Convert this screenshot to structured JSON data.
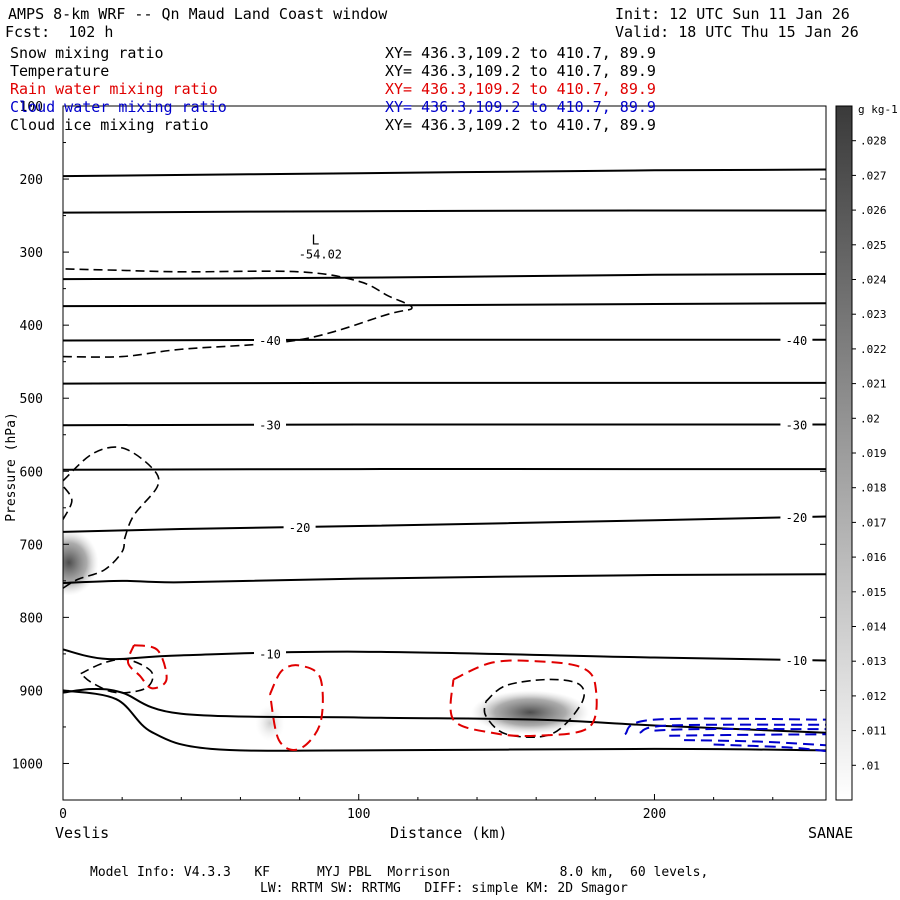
{
  "header": {
    "title": "AMPS 8-km WRF -- Qn Maud Land Coast window",
    "init": "Init: 12 UTC Sun 11 Jan 26",
    "forecast": "Fcst:  102 h",
    "valid": "Valid: 18 UTC Thu 15 Jan 26"
  },
  "fields": [
    {
      "name": "Snow mixing ratio",
      "xy": "XY= 436.3,109.2 to 410.7, 89.9",
      "color": "#000000"
    },
    {
      "name": "Temperature",
      "xy": "XY= 436.3,109.2 to 410.7, 89.9",
      "color": "#000000"
    },
    {
      "name": "Rain water mixing ratio",
      "xy": "XY= 436.3,109.2 to 410.7, 89.9",
      "color": "#e00000"
    },
    {
      "name": "Cloud water mixing ratio",
      "xy": "XY= 436.3,109.2 to 410.7, 89.9",
      "color": "#0000cc"
    },
    {
      "name": "Cloud ice mixing ratio",
      "xy": "XY= 436.3,109.2 to 410.7, 89.9",
      "color": "#000000"
    }
  ],
  "axes": {
    "ylabel": "Pressure (hPa)",
    "xlabel": "Distance (km)",
    "left_station": "Veslis",
    "right_station": "SANAE"
  },
  "footer": {
    "line1": "Model Info: V4.3.3   KF      MYJ PBL  Morrison              8.0 km,  60 levels,",
    "line2": "LW: RRTM SW: RRTMG   DIFF: simple KM: 2D Smagor"
  },
  "chart_data": {
    "type": "cross-section",
    "title": "AMPS 8-km WRF -- Qn Maud Land Coast window",
    "xlabel": "Distance (km)",
    "ylabel": "Pressure (hPa)",
    "xlim": [
      0,
      258
    ],
    "ylim": [
      1050,
      100
    ],
    "y_reversed": true,
    "xticks": [
      0,
      100,
      200
    ],
    "yticks": [
      100,
      200,
      300,
      400,
      500,
      600,
      700,
      800,
      900,
      1000
    ],
    "colorbar": {
      "label": "g kg-1",
      "ticks": [
        ".01",
        ".011",
        ".012",
        ".013",
        ".014",
        ".015",
        ".016",
        ".017",
        ".018",
        ".019",
        ".02",
        ".021",
        ".022",
        ".023",
        ".024",
        ".025",
        ".026",
        ".027",
        ".028"
      ]
    },
    "low_marker": {
      "label": "L",
      "value": "-54.02",
      "x": 85,
      "p": 320
    },
    "temperature_isotherms": [
      {
        "points": [
          [
            0,
            196
          ],
          [
            100,
            192
          ],
          [
            200,
            188
          ],
          [
            258,
            187
          ]
        ]
      },
      {
        "points": [
          [
            0,
            246
          ],
          [
            100,
            244
          ],
          [
            200,
            243
          ],
          [
            258,
            243
          ]
        ]
      },
      {
        "points": [
          [
            0,
            337
          ],
          [
            100,
            335
          ],
          [
            200,
            331
          ],
          [
            258,
            330
          ]
        ]
      },
      {
        "points": [
          [
            0,
            374
          ],
          [
            100,
            373
          ],
          [
            200,
            371
          ],
          [
            258,
            370
          ]
        ]
      },
      {
        "points": [
          [
            0,
            421
          ],
          [
            100,
            420
          ],
          [
            200,
            420
          ],
          [
            258,
            420
          ]
        ],
        "label": "-40",
        "label_x": [
          70,
          248
        ]
      },
      {
        "points": [
          [
            0,
            480
          ],
          [
            100,
            479
          ],
          [
            200,
            479
          ],
          [
            258,
            479
          ]
        ]
      },
      {
        "points": [
          [
            0,
            537
          ],
          [
            100,
            536
          ],
          [
            200,
            536
          ],
          [
            258,
            536
          ]
        ],
        "label": "-30",
        "label_x": [
          70,
          248
        ]
      },
      {
        "points": [
          [
            0,
            598
          ],
          [
            100,
            597
          ],
          [
            200,
            597
          ],
          [
            258,
            597
          ]
        ]
      },
      {
        "points": [
          [
            0,
            683
          ],
          [
            40,
            679
          ],
          [
            100,
            675
          ],
          [
            200,
            667
          ],
          [
            258,
            662
          ]
        ],
        "label": "-20",
        "label_x": [
          80,
          248
        ]
      },
      {
        "points": [
          [
            0,
            753
          ],
          [
            20,
            750
          ],
          [
            40,
            752
          ],
          [
            100,
            747
          ],
          [
            200,
            742
          ],
          [
            258,
            741
          ]
        ]
      },
      {
        "points": [
          [
            0,
            844
          ],
          [
            15,
            857
          ],
          [
            40,
            852
          ],
          [
            100,
            847
          ],
          [
            200,
            855
          ],
          [
            258,
            859
          ]
        ],
        "label": "-10",
        "label_x": [
          70,
          248
        ]
      },
      {
        "points": [
          [
            0,
            903
          ],
          [
            10,
            898
          ],
          [
            20,
            903
          ],
          [
            40,
            932
          ],
          [
            100,
            937
          ],
          [
            160,
            940
          ],
          [
            200,
            948
          ],
          [
            258,
            958
          ]
        ]
      },
      {
        "points": [
          [
            0,
            900
          ],
          [
            18,
            912
          ],
          [
            30,
            957
          ],
          [
            50,
            980
          ],
          [
            100,
            982
          ],
          [
            200,
            980
          ],
          [
            258,
            982
          ]
        ]
      }
    ],
    "snow_contours": [
      {
        "points": [
          [
            0,
            443
          ],
          [
            20,
            443
          ],
          [
            40,
            433
          ],
          [
            80,
            420
          ],
          [
            110,
            385
          ],
          [
            118,
            376
          ],
          [
            110,
            360
          ],
          [
            100,
            340
          ],
          [
            80,
            327
          ],
          [
            40,
            327
          ],
          [
            20,
            325
          ],
          [
            0,
            323
          ]
        ]
      },
      {
        "points": [
          [
            0,
            613
          ],
          [
            10,
            576
          ],
          [
            20,
            568
          ],
          [
            30,
            595
          ],
          [
            32,
            620
          ],
          [
            24,
            660
          ],
          [
            21,
            690
          ],
          [
            20,
            710
          ],
          [
            14,
            735
          ],
          [
            5,
            748
          ],
          [
            0,
            760
          ]
        ]
      },
      {
        "points": [
          [
            0,
            666
          ],
          [
            3,
            640
          ],
          [
            0,
            620
          ]
        ]
      },
      {
        "points": [
          [
            6,
            877
          ],
          [
            14,
            862
          ],
          [
            22,
            858
          ],
          [
            30,
            875
          ],
          [
            28,
            897
          ],
          [
            18,
            903
          ],
          [
            10,
            890
          ],
          [
            6,
            877
          ]
        ]
      },
      {
        "points": [
          [
            143,
            915
          ],
          [
            150,
            893
          ],
          [
            165,
            885
          ],
          [
            175,
            893
          ],
          [
            175,
            920
          ],
          [
            165,
            960
          ],
          [
            150,
            960
          ],
          [
            143,
            935
          ],
          [
            143,
            915
          ]
        ]
      }
    ],
    "rain_contours": [
      {
        "points": [
          [
            24,
            838
          ],
          [
            32,
            845
          ],
          [
            35,
            885
          ],
          [
            30,
            897
          ],
          [
            26,
            880
          ],
          [
            22,
            862
          ],
          [
            24,
            838
          ]
        ]
      },
      {
        "points": [
          [
            70,
            905
          ],
          [
            74,
            873
          ],
          [
            80,
            866
          ],
          [
            87,
            883
          ],
          [
            87,
            945
          ],
          [
            80,
            980
          ],
          [
            73,
            968
          ],
          [
            70,
            905
          ]
        ]
      },
      {
        "points": [
          [
            132,
            885
          ],
          [
            145,
            862
          ],
          [
            160,
            860
          ],
          [
            175,
            868
          ],
          [
            180,
            893
          ],
          [
            178,
            950
          ],
          [
            160,
            962
          ],
          [
            145,
            958
          ],
          [
            132,
            940
          ],
          [
            132,
            885
          ]
        ]
      }
    ],
    "cloud_water_contours": [
      {
        "points": [
          [
            190,
            960
          ],
          [
            200,
            940
          ],
          [
            258,
            940
          ]
        ]
      },
      {
        "points": [
          [
            195,
            958
          ],
          [
            205,
            948
          ],
          [
            258,
            947
          ]
        ]
      },
      {
        "points": [
          [
            200,
            955
          ],
          [
            215,
            953
          ],
          [
            258,
            953
          ]
        ]
      },
      {
        "points": [
          [
            205,
            962
          ],
          [
            225,
            961
          ],
          [
            258,
            960
          ]
        ]
      },
      {
        "points": [
          [
            210,
            968
          ],
          [
            235,
            970
          ],
          [
            258,
            975
          ]
        ]
      },
      {
        "points": [
          [
            220,
            974
          ],
          [
            245,
            978
          ],
          [
            258,
            983
          ]
        ]
      }
    ],
    "ice_shading": [
      {
        "x": 2,
        "p": 725,
        "rx": 10,
        "rp": 45,
        "max": 0.026
      },
      {
        "x": 158,
        "p": 930,
        "rx": 20,
        "rp": 30,
        "max": 0.027
      },
      {
        "x": 70,
        "p": 945,
        "rx": 5,
        "rp": 25,
        "max": 0.012
      }
    ]
  }
}
